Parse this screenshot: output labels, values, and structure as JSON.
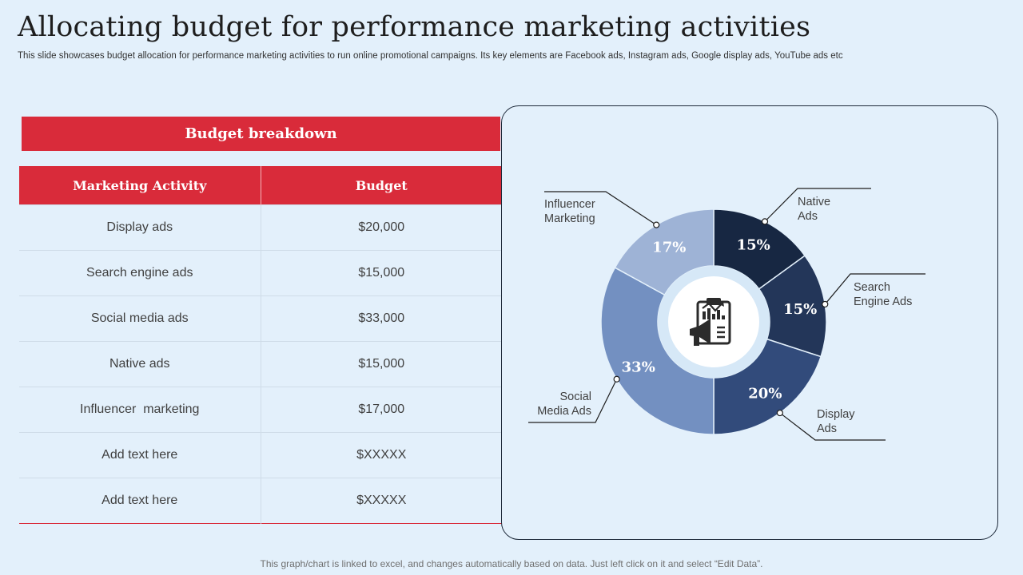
{
  "header": {
    "title": "Allocating budget for performance marketing activities",
    "subtitle": "This slide showcases budget allocation for performance marketing activities to run online promotional campaigns. Its key elements are Facebook ads, Instagram ads, Google display ads, YouTube ads etc"
  },
  "table": {
    "banner": "Budget breakdown",
    "columns": [
      "Marketing Activity",
      "Budget"
    ],
    "rows": [
      [
        "Display ads",
        "$20,000"
      ],
      [
        "Search engine ads",
        "$15,000"
      ],
      [
        "Social media ads",
        "$33,000"
      ],
      [
        "Native ads",
        "$15,000"
      ],
      [
        "Influencer  marketing",
        "$17,000"
      ],
      [
        "Add text here",
        "$XXXXX"
      ],
      [
        "Add text here",
        "$XXXXX"
      ]
    ]
  },
  "chart_data": {
    "type": "pie",
    "center_icon": "clipboard-megaphone-chart-icon",
    "slices": [
      {
        "label": "Native Ads",
        "label_lines": [
          "Native",
          "Ads"
        ],
        "value": 15,
        "value_label": "15%",
        "color": "#172742"
      },
      {
        "label": "Search Engine Ads",
        "label_lines": [
          "Search",
          "Engine Ads"
        ],
        "value": 15,
        "value_label": "15%",
        "color": "#233659"
      },
      {
        "label": "Display Ads",
        "label_lines": [
          "Display",
          "Ads"
        ],
        "value": 20,
        "value_label": "20%",
        "color": "#324b7b"
      },
      {
        "label": "Social Media Ads",
        "label_lines": [
          "Social",
          "Media Ads"
        ],
        "value": 33,
        "value_label": "33%",
        "color": "#7390c1"
      },
      {
        "label": "Influencer Marketing",
        "label_lines": [
          "Influencer",
          "Marketing"
        ],
        "value": 17,
        "value_label": "17%",
        "color": "#9eb3d6"
      }
    ]
  },
  "footer": {
    "note": "This graph/chart is linked to excel, and changes automatically based on data. Just left click on it and select “Edit Data”."
  },
  "colors": {
    "accent_red": "#d92b3a",
    "background": "#e3f0fb",
    "card_border": "#1e2a3a"
  }
}
